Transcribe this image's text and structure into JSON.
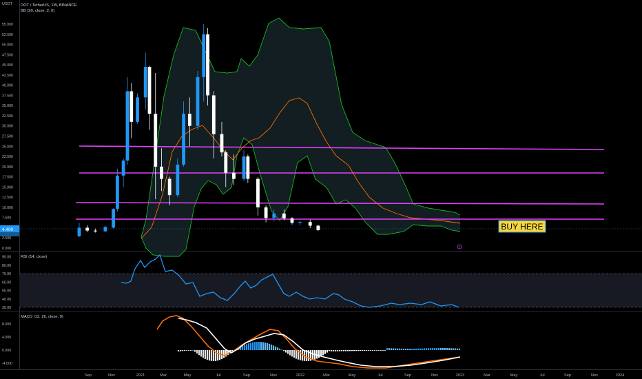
{
  "header": {
    "currency": "USDT",
    "symbol_line": "DOT / TetherUS, 1W, BINANCE",
    "indicator_line": "BB (20, close, 2, 0)"
  },
  "price_axis": {
    "ticks": [
      "55.000",
      "52.500",
      "50.000",
      "47.500",
      "45.000",
      "42.500",
      "40.000",
      "37.500",
      "35.000",
      "32.500",
      "30.000",
      "27.500",
      "25.000",
      "22.500",
      "20.000",
      "17.500",
      "15.000",
      "12.500",
      "10.000",
      "7.500",
      "5.000",
      "2.500",
      "0.000"
    ],
    "last_price_label": "4.400",
    "last_price": 4.4
  },
  "annotation": {
    "buy_label": "BUY HERE"
  },
  "rsi": {
    "label": "RSI (14, close)",
    "ticks": [
      "90.00",
      "80.00",
      "70.00",
      "60.00",
      "50.00",
      "40.00",
      "30.00"
    ],
    "upper_band": 70,
    "lower_band": 30
  },
  "macd": {
    "label": "MACD (12, 26, close, 9)",
    "ticks": [
      "8.000",
      "4.000",
      "0.000",
      "-4.000"
    ]
  },
  "time_axis": {
    "labels": [
      "Sep",
      "Nov",
      "2021",
      "Mar",
      "May",
      "Jul",
      "Sep",
      "Nov",
      "2022",
      "Mar",
      "May",
      "Jul",
      "Sep",
      "Nov",
      "2023",
      "Mar",
      "May",
      "Jul",
      "Sep",
      "Nov",
      "2024"
    ]
  },
  "colors": {
    "up": "#2196f3",
    "down": "#ffffff",
    "bb_band": "#19b91f",
    "bb_basis": "#ff6d00",
    "support": "#e040fb",
    "rsi": "#2196f3",
    "macd": "#ffffff",
    "signal": "#ff6d00",
    "buy_bg": "#f5d63d"
  },
  "chart_data": {
    "type": "candlestick",
    "timeframe": "1W",
    "y_range": [
      -1,
      56
    ],
    "horizontal_levels": [
      24.2,
      17.5,
      10.5,
      6.5
    ],
    "candles": [
      {
        "t": "2020-08-23",
        "o": 2.9,
        "h": 6.2,
        "l": 2.7,
        "c": 5.0
      },
      {
        "t": "2020-09-20",
        "o": 5.0,
        "h": 5.6,
        "l": 3.9,
        "c": 4.3
      },
      {
        "t": "2020-10-18",
        "o": 4.3,
        "h": 4.8,
        "l": 3.8,
        "c": 4.1
      },
      {
        "t": "2020-11-22",
        "o": 4.1,
        "h": 5.6,
        "l": 4.0,
        "c": 5.2
      },
      {
        "t": "2020-12-20",
        "o": 5.0,
        "h": 9.8,
        "l": 4.8,
        "c": 9.6
      },
      {
        "t": "2021-01-03",
        "o": 9.6,
        "h": 19.5,
        "l": 9.0,
        "c": 17.8
      },
      {
        "t": "2021-01-24",
        "o": 17.8,
        "h": 22.0,
        "l": 15.0,
        "c": 21.5
      },
      {
        "t": "2021-02-07",
        "o": 21.5,
        "h": 42.0,
        "l": 20.5,
        "c": 38.5
      },
      {
        "t": "2021-02-21",
        "o": 38.5,
        "h": 40.5,
        "l": 27.0,
        "c": 31.0
      },
      {
        "t": "2021-03-14",
        "o": 31.0,
        "h": 38.0,
        "l": 30.5,
        "c": 37.0
      },
      {
        "t": "2021-04-11",
        "o": 37.0,
        "h": 48.0,
        "l": 34.0,
        "c": 44.5
      },
      {
        "t": "2021-04-25",
        "o": 44.5,
        "h": 44.8,
        "l": 29.0,
        "c": 33.0
      },
      {
        "t": "2021-05-16",
        "o": 33.0,
        "h": 43.0,
        "l": 12.0,
        "c": 20.0
      },
      {
        "t": "2021-06-06",
        "o": 20.0,
        "h": 24.5,
        "l": 14.0,
        "c": 17.0
      },
      {
        "t": "2021-07-04",
        "o": 17.0,
        "h": 17.5,
        "l": 10.5,
        "c": 13.0
      },
      {
        "t": "2021-08-01",
        "o": 13.0,
        "h": 22.0,
        "l": 12.5,
        "c": 20.5
      },
      {
        "t": "2021-08-22",
        "o": 20.5,
        "h": 36.0,
        "l": 20.0,
        "c": 33.0
      },
      {
        "t": "2021-09-12",
        "o": 33.0,
        "h": 37.0,
        "l": 25.0,
        "c": 30.0
      },
      {
        "t": "2021-10-10",
        "o": 30.0,
        "h": 43.5,
        "l": 29.0,
        "c": 42.0
      },
      {
        "t": "2021-10-31",
        "o": 42.0,
        "h": 55.0,
        "l": 36.0,
        "c": 52.5
      },
      {
        "t": "2021-11-14",
        "o": 52.5,
        "h": 54.0,
        "l": 35.0,
        "c": 37.5
      },
      {
        "t": "2021-12-05",
        "o": 37.5,
        "h": 38.5,
        "l": 22.0,
        "c": 28.0
      },
      {
        "t": "2022-01-02",
        "o": 28.0,
        "h": 31.0,
        "l": 22.5,
        "c": 23.5
      },
      {
        "t": "2022-01-16",
        "o": 23.5,
        "h": 24.0,
        "l": 15.0,
        "c": 18.5
      },
      {
        "t": "2022-02-13",
        "o": 18.5,
        "h": 23.0,
        "l": 15.5,
        "c": 17.0
      },
      {
        "t": "2022-03-20",
        "o": 17.0,
        "h": 24.0,
        "l": 16.5,
        "c": 22.5
      },
      {
        "t": "2022-04-03",
        "o": 22.5,
        "h": 23.0,
        "l": 16.0,
        "c": 17.0
      },
      {
        "t": "2022-05-08",
        "o": 17.0,
        "h": 17.5,
        "l": 8.0,
        "c": 10.0
      },
      {
        "t": "2022-06-05",
        "o": 10.0,
        "h": 10.5,
        "l": 6.3,
        "c": 7.4
      },
      {
        "t": "2022-07-03",
        "o": 7.4,
        "h": 9.5,
        "l": 6.5,
        "c": 8.5
      },
      {
        "t": "2022-08-07",
        "o": 8.5,
        "h": 9.5,
        "l": 6.8,
        "c": 7.3
      },
      {
        "t": "2022-09-04",
        "o": 7.3,
        "h": 7.6,
        "l": 5.8,
        "c": 6.2
      },
      {
        "t": "2022-10-02",
        "o": 6.2,
        "h": 6.8,
        "l": 5.6,
        "c": 6.4
      },
      {
        "t": "2022-11-06",
        "o": 6.4,
        "h": 7.0,
        "l": 4.9,
        "c": 5.5
      },
      {
        "t": "2022-12-04",
        "o": 5.5,
        "h": 5.7,
        "l": 4.2,
        "c": 4.4
      }
    ]
  }
}
